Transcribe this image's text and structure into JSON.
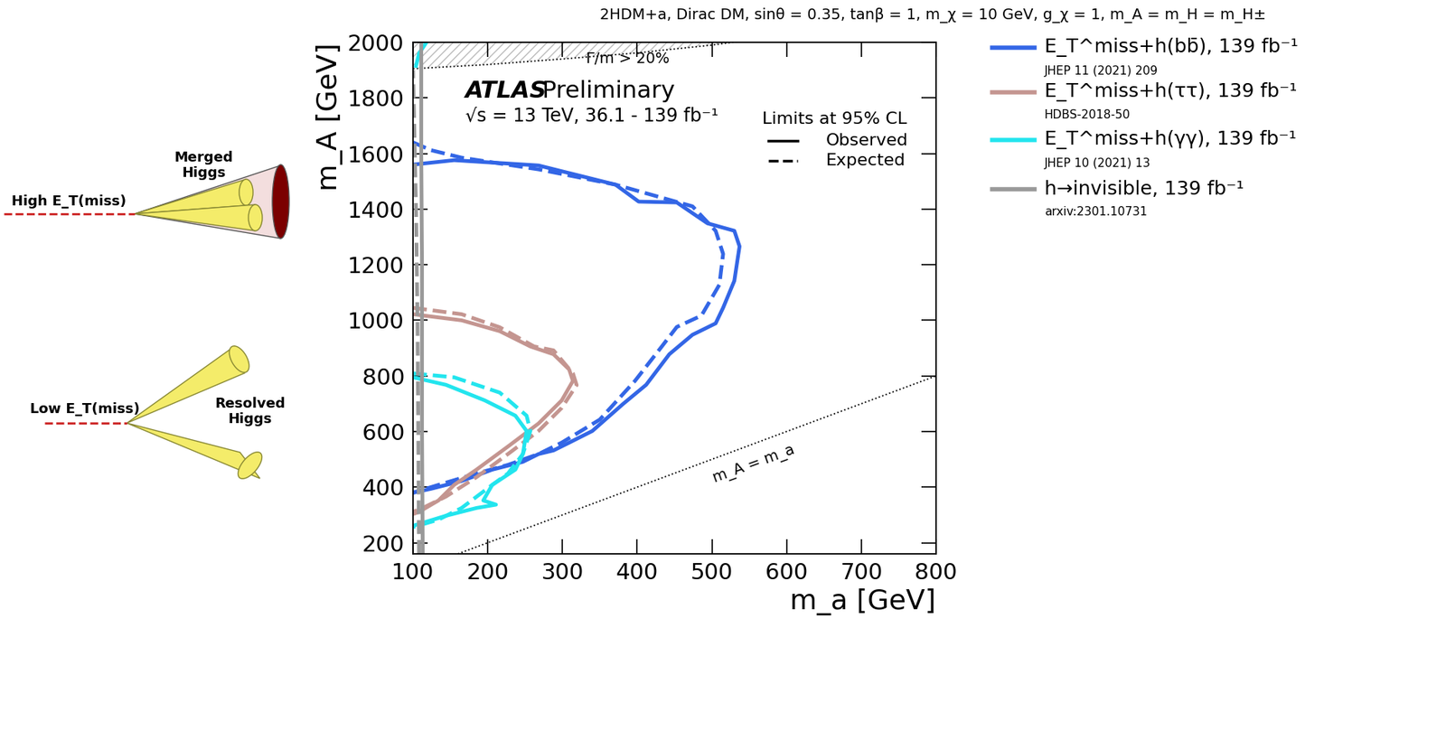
{
  "chart_data": {
    "type": "line",
    "title": "2HDM+a, Dirac DM, sinθ = 0.35, tanβ = 1, m_χ = 10 GeV, g_χ = 1, m_A = m_H = m_H±",
    "x_label": "m_a [GeV]",
    "y_label": "m_A [GeV]",
    "xlim": [
      100,
      800
    ],
    "ylim": [
      160,
      2000
    ],
    "xticks": [
      100,
      200,
      300,
      400,
      500,
      600,
      700,
      800
    ],
    "yticks": [
      200,
      400,
      600,
      800,
      1000,
      1200,
      1400,
      1600,
      1800,
      2000
    ],
    "experiment": "ATLAS",
    "status": "Preliminary",
    "energy_label": "√s = 13 TeV, 36.1 - 139 fb⁻¹",
    "limits": {
      "title": "Limits at 95% CL",
      "observed": {
        "label": "Observed",
        "line_style": "solid"
      },
      "expected": {
        "label": "Expected",
        "line_style": "dashed"
      }
    },
    "width_limit": {
      "label": "Γ/m > 20%",
      "line_style": "dotted",
      "x": [
        100,
        200,
        300,
        400,
        500,
        550
      ],
      "y": [
        1905,
        1920,
        1940,
        1962,
        1990,
        2008
      ]
    },
    "diagonal": {
      "label": "m_A = m_a",
      "line_style": "dotted",
      "x": [
        100,
        800
      ],
      "y": [
        100,
        800
      ]
    },
    "series": [
      {
        "name": "E_T^miss+h(bb̄), 139 fb⁻¹",
        "reference": "JHEP 11 (2021) 209",
        "color": "#3366e6",
        "observed": {
          "x": [
            100,
            155,
            268,
            371,
            402,
            453,
            494,
            530,
            537,
            530,
            515,
            505,
            474,
            443,
            412,
            381,
            340,
            309,
            288,
            268,
            247,
            206,
            165,
            124,
            100
          ],
          "y": [
            1560,
            1576,
            1557,
            1488,
            1427,
            1424,
            1349,
            1322,
            1266,
            1142,
            1045,
            989,
            948,
            878,
            768,
            699,
            602,
            560,
            532,
            519,
            491,
            463,
            422,
            394,
            380
          ]
        },
        "expected": {
          "x": [
            100,
            124,
            165,
            268,
            371,
            474,
            505,
            515,
            510,
            486,
            453,
            433,
            397,
            350,
            299,
            268,
            227,
            185,
            134,
            100
          ],
          "y": [
            1640,
            1612,
            1585,
            1543,
            1488,
            1410,
            1322,
            1239,
            1128,
            1017,
            976,
            906,
            782,
            643,
            560,
            519,
            480,
            449,
            408,
            380
          ]
        }
      },
      {
        "name": "E_T^miss+h(ττ), 139 fb⁻¹",
        "reference": "HDBS-2018-50",
        "color": "#c49590",
        "observed": {
          "x": [
            100,
            165,
            216,
            257,
            288,
            309,
            314,
            299,
            268,
            227,
            185,
            155,
            134,
            108,
            100
          ],
          "y": [
            1022,
            1000,
            961,
            906,
            878,
            823,
            782,
            712,
            629,
            546,
            463,
            408,
            352,
            311,
            303
          ]
        },
        "expected": {
          "x": [
            100,
            165,
            216,
            262,
            288,
            314,
            319,
            299,
            268,
            227,
            185,
            144,
            113,
            100
          ],
          "y": [
            1045,
            1022,
            975,
            906,
            892,
            809,
            767,
            685,
            602,
            519,
            436,
            366,
            325,
            311
          ]
        }
      },
      {
        "name": "E_T^miss+h(γγ), 139 fb⁻¹",
        "reference": "JHEP 10 (2021) 13",
        "color": "#22e5ee",
        "observed": {
          "x": [
            100,
            144,
            196,
            237,
            252,
            247,
            237,
            206,
            194,
            211,
            185,
            144,
            100
          ],
          "y": [
            795,
            768,
            712,
            657,
            602,
            519,
            463,
            408,
            352,
            337,
            325,
            297,
            261
          ]
        },
        "expected": {
          "x": [
            100,
            155,
            216,
            252,
            257,
            247,
            227,
            206,
            165,
            134,
            100
          ],
          "y": [
            809,
            795,
            740,
            657,
            602,
            519,
            449,
            408,
            325,
            283,
            256
          ]
        },
        "observed_upper": {
          "x": [
            104,
            108,
            118
          ],
          "y": [
            1915,
            1960,
            2000
          ]
        }
      },
      {
        "name": "h→invisible, 139 fb⁻¹",
        "reference": "arxiv:2301.10731",
        "color": "#999999",
        "observed": {
          "x": [
            113,
            112,
            112,
            111,
            111
          ],
          "y": [
            160,
            600,
            1200,
            1600,
            2000
          ]
        },
        "expected": {
          "x": [
            108,
            107,
            106,
            104,
            100
          ],
          "y": [
            160,
            600,
            1000,
            1400,
            1900
          ]
        }
      }
    ],
    "diagram": {
      "merged": {
        "met_label": "High E_T(miss)",
        "jet_label": "Merged\nHiggs"
      },
      "resolved": {
        "met_label": "Low E_T(miss)",
        "jet_label": "Resolved\nHiggs"
      }
    }
  }
}
